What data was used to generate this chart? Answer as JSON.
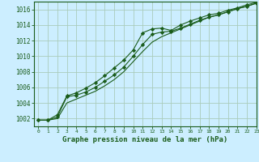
{
  "x": [
    0,
    1,
    2,
    3,
    4,
    5,
    6,
    7,
    8,
    9,
    10,
    11,
    12,
    13,
    14,
    15,
    16,
    17,
    18,
    19,
    20,
    21,
    22,
    23
  ],
  "line1": [
    1001.8,
    1001.8,
    1002.5,
    1004.9,
    1005.3,
    1005.9,
    1006.6,
    1007.5,
    1008.5,
    1009.5,
    1010.8,
    1013.0,
    1013.5,
    1013.6,
    1013.3,
    1014.0,
    1014.5,
    1014.9,
    1015.3,
    1015.5,
    1015.9,
    1016.2,
    1016.6,
    1016.9
  ],
  "line2": [
    1001.8,
    1001.8,
    1002.2,
    1004.8,
    1005.0,
    1005.4,
    1006.0,
    1006.8,
    1007.6,
    1008.6,
    1010.0,
    1011.5,
    1012.8,
    1013.1,
    1013.2,
    1013.6,
    1014.1,
    1014.6,
    1015.0,
    1015.3,
    1015.7,
    1016.1,
    1016.4,
    1016.8
  ],
  "line3": [
    1001.8,
    1001.8,
    1002.0,
    1004.0,
    1004.5,
    1005.0,
    1005.5,
    1006.2,
    1007.0,
    1008.0,
    1009.3,
    1010.6,
    1011.8,
    1012.5,
    1013.0,
    1013.5,
    1014.0,
    1014.5,
    1015.0,
    1015.3,
    1015.7,
    1016.1,
    1016.4,
    1016.8
  ],
  "bg_color": "#cceeff",
  "grid_color": "#aaccbb",
  "line_color": "#1a5c1a",
  "marker": "D",
  "marker_size": 2.2,
  "xlabel": "Graphe pression niveau de la mer (hPa)",
  "ylim": [
    1001,
    1017
  ],
  "xlim": [
    -0.5,
    23
  ],
  "yticks": [
    1002,
    1004,
    1006,
    1008,
    1010,
    1012,
    1014,
    1016
  ],
  "xticks": [
    0,
    1,
    2,
    3,
    4,
    5,
    6,
    7,
    8,
    9,
    10,
    11,
    12,
    13,
    14,
    15,
    16,
    17,
    18,
    19,
    20,
    21,
    22,
    23
  ]
}
